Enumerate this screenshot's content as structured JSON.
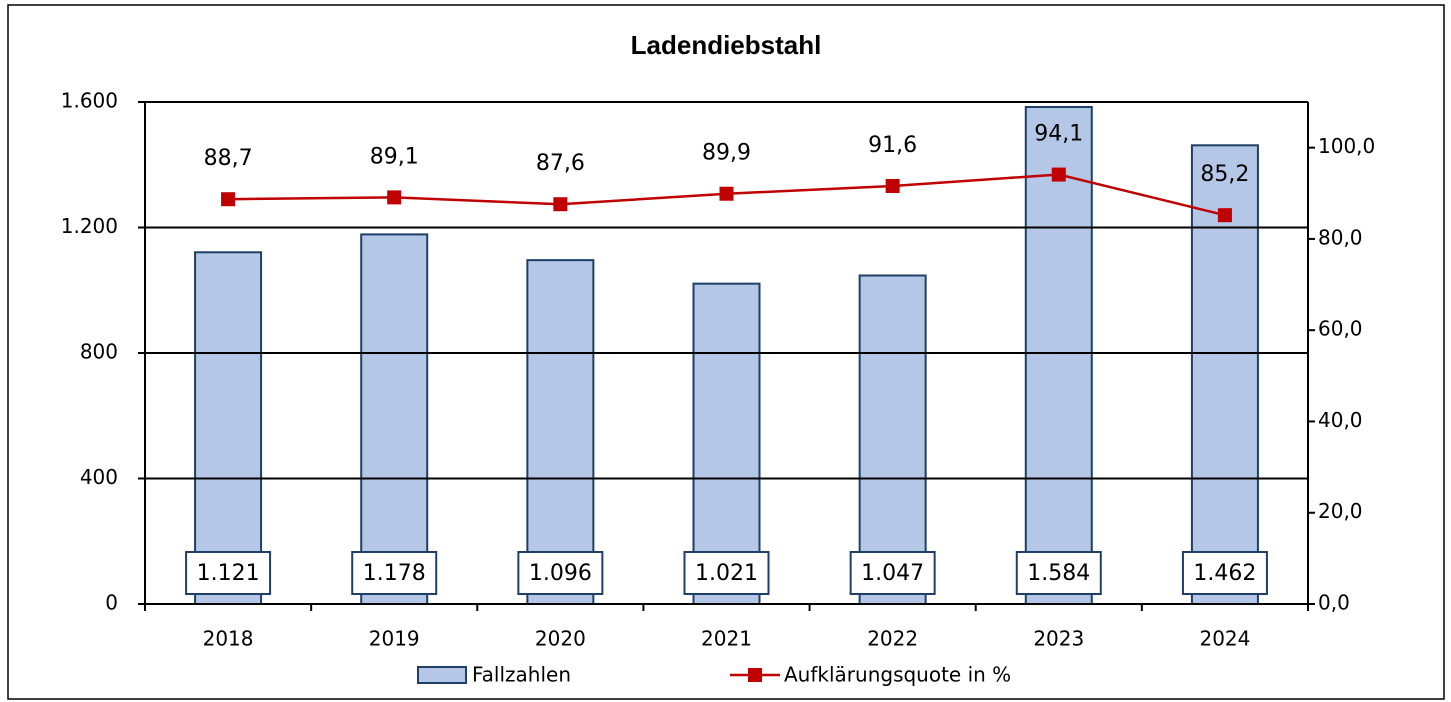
{
  "chart_data": {
    "type": "bar_line",
    "title": "Ladendiebstahl",
    "categories": [
      "2018",
      "2019",
      "2020",
      "2021",
      "2022",
      "2023",
      "2024"
    ],
    "series": [
      {
        "name": "Fallzahlen",
        "type": "bar",
        "color": "#b4c7e7",
        "axis": "y",
        "values": [
          1121,
          1178,
          1096,
          1021,
          1047,
          1584,
          1462
        ],
        "value_labels": [
          "1.121",
          "1.178",
          "1.096",
          "1.021",
          "1.047",
          "1.584",
          "1.462"
        ]
      },
      {
        "name": "Aufklärungsquote in %",
        "type": "line",
        "color": "#c00000",
        "axis": "y2",
        "values": [
          88.7,
          89.1,
          87.6,
          89.9,
          91.6,
          94.1,
          85.2
        ],
        "value_labels": [
          "88,7",
          "89,1",
          "87,6",
          "89,9",
          "91,6",
          "94,1",
          "85,2"
        ]
      }
    ],
    "ylim": [
      0,
      1600
    ],
    "yticks": [
      0,
      {
        "value": 400,
        "label": "400"
      },
      {
        "value": 800,
        "label": "800"
      },
      {
        "value": 1200,
        "label": "1.200"
      },
      {
        "value": 1600,
        "label": "1.600"
      }
    ],
    "y2lim": [
      0,
      110
    ],
    "y2ticks": [
      {
        "value": 0,
        "label": "0,0"
      },
      {
        "value": 20,
        "label": "20,0"
      },
      {
        "value": 40,
        "label": "40,0"
      },
      {
        "value": 60,
        "label": "60,0"
      },
      {
        "value": 80,
        "label": "80,0"
      },
      {
        "value": 100,
        "label": "100,0"
      }
    ],
    "grid": true
  }
}
